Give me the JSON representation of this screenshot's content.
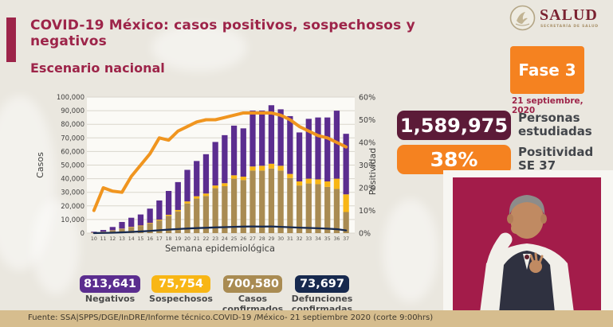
{
  "header": {
    "title": "COVID-19 México: casos positivos, sospechosos y negativos",
    "logo": {
      "name": "SALUD",
      "subtitle": "SECRETARÍA DE SALUD"
    }
  },
  "section_title": "Escenario nacional",
  "phase": {
    "label": "Fase 3",
    "date": "21 septiembre, 2020"
  },
  "stats": [
    {
      "value": "1,589,975",
      "label_line1": "Personas",
      "label_line2": "estudiadas",
      "color": "#5c1b38"
    },
    {
      "value": "38%",
      "label_line1": "Positividad",
      "label_line2": "SE 37",
      "color": "#f58220"
    }
  ],
  "summary_badges": [
    {
      "value": "813,641",
      "label_line1": "Negativos",
      "label_line2": "",
      "color": "#5b2d8f"
    },
    {
      "value": "75,754",
      "label_line1": "Sospechosos",
      "label_line2": "",
      "color": "#f8b615"
    },
    {
      "value": "700,580",
      "label_line1": "Casos",
      "label_line2": "confirmados",
      "color": "#a98b52"
    },
    {
      "value": "73,697",
      "label_line1": "Defunciones",
      "label_line2": "confirmadas",
      "color": "#17294e"
    }
  ],
  "chart_data": {
    "type": "bar",
    "subtype": "stacked-bars-with-line-overlays",
    "title": "",
    "xlabel": "Semana epidemiológica",
    "ylabel_left": "Casos",
    "ylabel_right": "Positividad",
    "categories": [
      "10",
      "11",
      "12",
      "13",
      "14",
      "15",
      "16",
      "17",
      "18",
      "19",
      "20",
      "21",
      "22",
      "23",
      "24",
      "25",
      "26",
      "27",
      "28",
      "29",
      "30",
      "31",
      "32",
      "33",
      "34",
      "35",
      "36",
      "37"
    ],
    "series": [
      {
        "name": "Casos confirmados",
        "color": "#a98b52",
        "values": [
          400,
          1000,
          1900,
          3100,
          4300,
          5200,
          7000,
          9300,
          12700,
          16000,
          21800,
          25400,
          27300,
          33000,
          34500,
          40000,
          39000,
          46000,
          46000,
          47500,
          46000,
          40500,
          35000,
          36500,
          36000,
          34000,
          32500,
          15500
        ]
      },
      {
        "name": "Sospechosos",
        "color": "#f8b615",
        "values": [
          100,
          100,
          200,
          200,
          300,
          400,
          500,
          600,
          800,
          1000,
          1500,
          1700,
          1800,
          2000,
          2200,
          2500,
          2500,
          3000,
          3500,
          3500,
          3500,
          3000,
          3000,
          3500,
          3500,
          4000,
          7500,
          13000
        ]
      },
      {
        "name": "Negativos",
        "color": "#5b2d8f",
        "values": [
          500,
          1200,
          2400,
          4900,
          6700,
          8100,
          10500,
          14100,
          17500,
          20500,
          23200,
          25900,
          28900,
          32000,
          35300,
          36500,
          35500,
          41000,
          40500,
          43000,
          41500,
          42500,
          36000,
          44000,
          45500,
          47000,
          50000,
          44500
        ]
      }
    ],
    "lines": [
      {
        "name": "Defunciones confirmadas",
        "color": "#17294e",
        "axis": "left",
        "values": [
          50,
          150,
          300,
          550,
          900,
          1200,
          1600,
          2100,
          2600,
          3000,
          3400,
          3700,
          3900,
          4200,
          4400,
          4600,
          4800,
          4900,
          4800,
          4900,
          4600,
          4300,
          4000,
          3800,
          3600,
          3300,
          2900,
          2000
        ]
      },
      {
        "name": "Positividad",
        "color": "#f0951f",
        "axis": "right",
        "values": [
          10,
          20,
          18.5,
          18,
          25,
          30,
          35,
          42,
          41,
          45,
          47,
          49,
          50,
          50,
          51,
          52,
          53,
          53,
          53,
          53,
          52,
          50,
          47,
          45,
          43,
          42,
          40,
          38
        ]
      }
    ],
    "y_left": {
      "min": 0,
      "max": 100000,
      "step": 10000,
      "ticks": [
        "0",
        "10,000",
        "20,000",
        "30,000",
        "40,000",
        "50,000",
        "60,000",
        "70,000",
        "80,000",
        "90,000",
        "100,000"
      ]
    },
    "y_right": {
      "min": 0,
      "max": 60,
      "step": 10,
      "ticks": [
        "0%",
        "10%",
        "20%",
        "30%",
        "40%",
        "50%",
        "60%"
      ]
    },
    "grid": true,
    "legend": "none (color badges below chart act as legend)"
  },
  "footer": {
    "source": "Fuente: SSA|SPPS/DGE/InDRE/Informe técnico.COVID-19 /México- 21 septiembre 2020 (corte 9:00hrs)"
  },
  "colors": {
    "accent_maroon": "#9d2449",
    "phase_orange": "#f58220",
    "footer_bar": "#d6bd8e",
    "interpreter_background": "#a31c4a",
    "page_background": "#eae7df"
  }
}
